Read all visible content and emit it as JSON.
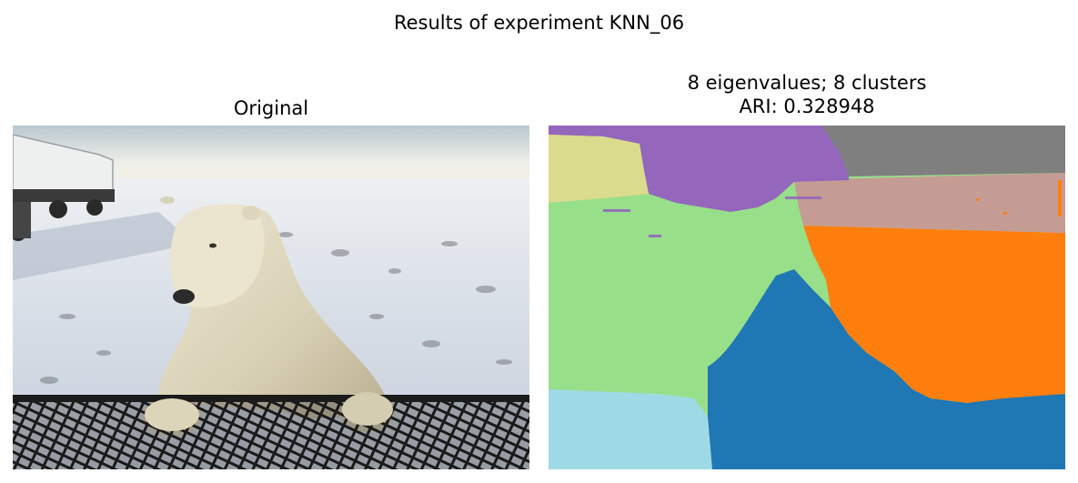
{
  "figure": {
    "suptitle": "Results of experiment KNN_06"
  },
  "panels": {
    "original": {
      "title": "Original"
    },
    "segmentation": {
      "title_line1": "8 eigenvalues; 8 clusters",
      "title_line2": "ARI: 0.328948",
      "cluster_colors": [
        "#9467bd",
        "#7f7f7f",
        "#dbdb8d",
        "#c49c94",
        "#ff7f0e",
        "#98df8a",
        "#1f77b4",
        "#9edae5"
      ]
    }
  }
}
